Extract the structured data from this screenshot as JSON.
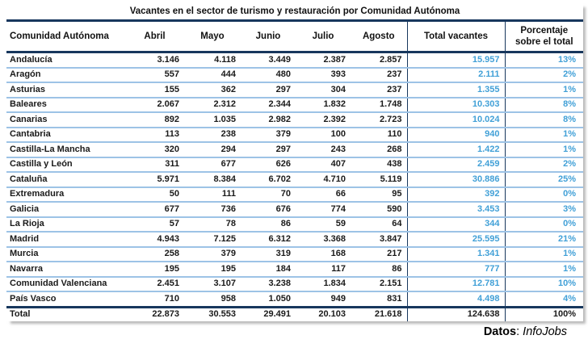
{
  "title": "Vacantes en el sector de turismo y restauración por Comunidad Autónoma",
  "header": {
    "region": "Comunidad Autónoma",
    "months": [
      "Abril",
      "Mayo",
      "Junio",
      "Julio",
      "Agosto"
    ],
    "total": "Total vacantes",
    "pct_line1": "Porcentaje",
    "pct_line2": "sobre el total"
  },
  "chart_data": {
    "type": "table",
    "title": "Vacantes en el sector de turismo y restauración por Comunidad Autónoma",
    "columns": [
      "Comunidad Autónoma",
      "Abril",
      "Mayo",
      "Junio",
      "Julio",
      "Agosto",
      "Total vacantes",
      "Porcentaje sobre el total"
    ],
    "rows": [
      [
        "Andalucía",
        "3.146",
        "4.118",
        "3.449",
        "2.387",
        "2.857",
        "15.957",
        "13%"
      ],
      [
        "Aragón",
        "557",
        "444",
        "480",
        "393",
        "237",
        "2.111",
        "2%"
      ],
      [
        "Asturias",
        "155",
        "362",
        "297",
        "304",
        "237",
        "1.355",
        "1%"
      ],
      [
        "Baleares",
        "2.067",
        "2.312",
        "2.344",
        "1.832",
        "1.748",
        "10.303",
        "8%"
      ],
      [
        "Canarias",
        "892",
        "1.035",
        "2.982",
        "2.392",
        "2.723",
        "10.024",
        "8%"
      ],
      [
        "Cantabria",
        "113",
        "238",
        "379",
        "100",
        "110",
        "940",
        "1%"
      ],
      [
        "Castilla-La Mancha",
        "320",
        "294",
        "297",
        "243",
        "268",
        "1.422",
        "1%"
      ],
      [
        "Castilla y León",
        "311",
        "677",
        "626",
        "407",
        "438",
        "2.459",
        "2%"
      ],
      [
        "Cataluña",
        "5.971",
        "8.384",
        "6.702",
        "4.710",
        "5.119",
        "30.886",
        "25%"
      ],
      [
        "Extremadura",
        "50",
        "111",
        "70",
        "66",
        "95",
        "392",
        "0%"
      ],
      [
        "Galicia",
        "677",
        "736",
        "676",
        "774",
        "590",
        "3.453",
        "3%"
      ],
      [
        "La Rioja",
        "57",
        "78",
        "86",
        "59",
        "64",
        "344",
        "0%"
      ],
      [
        "Madrid",
        "4.943",
        "7.125",
        "6.312",
        "3.368",
        "3.847",
        "25.595",
        "21%"
      ],
      [
        "Murcia",
        "258",
        "379",
        "319",
        "168",
        "217",
        "1.341",
        "1%"
      ],
      [
        "Navarra",
        "195",
        "195",
        "184",
        "117",
        "86",
        "777",
        "1%"
      ],
      [
        "Comunidad Valenciana",
        "2.451",
        "3.107",
        "3.238",
        "1.834",
        "2.151",
        "12.781",
        "10%"
      ],
      [
        "País Vasco",
        "710",
        "958",
        "1.050",
        "949",
        "831",
        "4.498",
        "4%"
      ]
    ],
    "total_row": [
      "Total",
      "22.873",
      "30.553",
      "29.491",
      "20.103",
      "21.618",
      "124.638",
      "100%"
    ]
  },
  "footer": {
    "label": "Datos",
    "separator": ": ",
    "source": "InfoJobs"
  },
  "colors": {
    "accent_blue": "#41A0D7",
    "dark_line": "#17375D",
    "light_line": "#9DC3E6"
  }
}
